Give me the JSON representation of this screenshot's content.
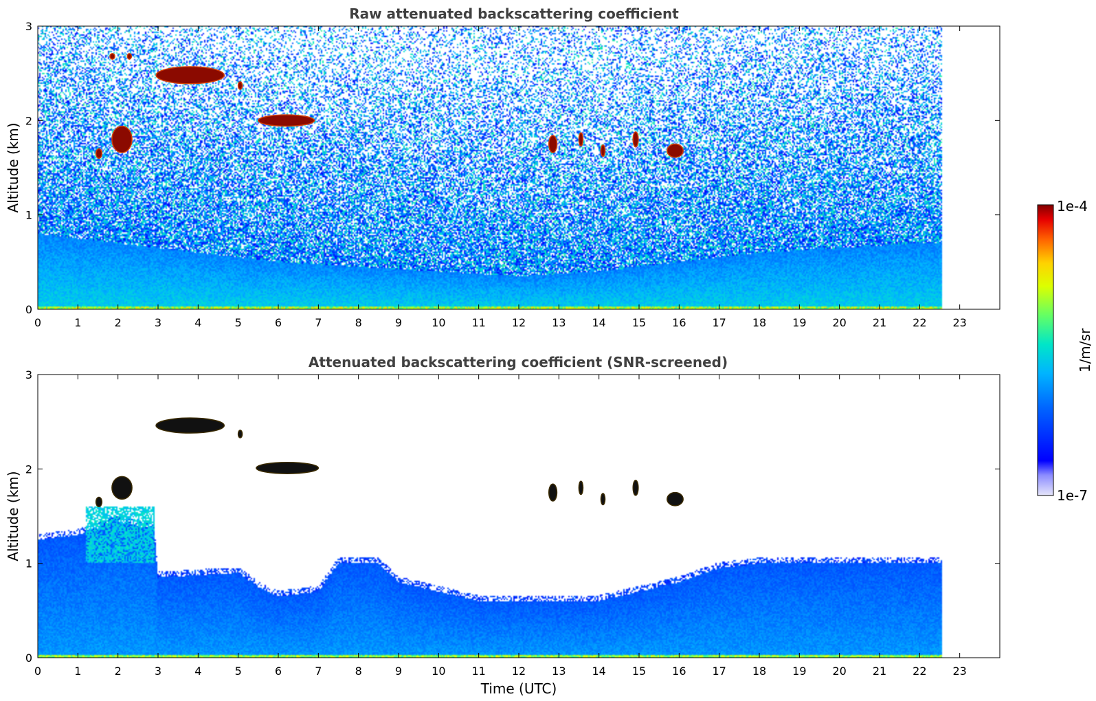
{
  "chart_data": [
    {
      "type": "heatmap",
      "title": "Raw attenuated backscattering coefficient",
      "xlabel": "",
      "ylabel": "Altitude (km)",
      "x_range": [
        0,
        24
      ],
      "y_range": [
        0,
        3
      ],
      "x_ticks": [
        "0",
        "1",
        "2",
        "3",
        "4",
        "5",
        "6",
        "7",
        "8",
        "9",
        "10",
        "11",
        "12",
        "13",
        "14",
        "15",
        "16",
        "17",
        "18",
        "19",
        "20",
        "21",
        "22",
        "23"
      ],
      "y_ticks": [
        "0",
        "1",
        "2",
        "3"
      ],
      "data_end_time": 22.55,
      "noise": "high",
      "boundary_layer_top_km": [
        [
          0,
          0.8
        ],
        [
          2,
          0.7
        ],
        [
          4,
          0.6
        ],
        [
          6,
          0.5
        ],
        [
          8,
          0.45
        ],
        [
          10,
          0.4
        ],
        [
          12,
          0.35
        ],
        [
          14,
          0.4
        ],
        [
          16,
          0.5
        ],
        [
          18,
          0.6
        ],
        [
          20,
          0.65
        ],
        [
          22,
          0.7
        ]
      ],
      "cloud_features": [
        {
          "t0": 2.95,
          "t1": 4.65,
          "alt": 2.48,
          "thick": 0.18
        },
        {
          "t0": 5.5,
          "t1": 6.9,
          "alt": 2.0,
          "thick": 0.12
        },
        {
          "t0": 1.85,
          "t1": 2.35,
          "alt": 1.8,
          "thick": 0.28
        },
        {
          "t0": 1.45,
          "t1": 1.6,
          "alt": 1.65,
          "thick": 0.1
        },
        {
          "t0": 1.8,
          "t1": 1.92,
          "alt": 2.68,
          "thick": 0.06
        },
        {
          "t0": 2.25,
          "t1": 2.32,
          "alt": 2.68,
          "thick": 0.06
        },
        {
          "t0": 5.0,
          "t1": 5.1,
          "alt": 2.37,
          "thick": 0.08
        },
        {
          "t0": 12.75,
          "t1": 12.95,
          "alt": 1.75,
          "thick": 0.18
        },
        {
          "t0": 13.5,
          "t1": 13.6,
          "alt": 1.8,
          "thick": 0.14
        },
        {
          "t0": 14.05,
          "t1": 14.15,
          "alt": 1.68,
          "thick": 0.12
        },
        {
          "t0": 14.85,
          "t1": 14.98,
          "alt": 1.8,
          "thick": 0.16
        },
        {
          "t0": 15.7,
          "t1": 16.1,
          "alt": 1.68,
          "thick": 0.14
        }
      ]
    },
    {
      "type": "heatmap",
      "title": "Attenuated backscattering coefficient (SNR-screened)",
      "xlabel": "Time (UTC)",
      "ylabel": "Altitude (km)",
      "x_range": [
        0,
        24
      ],
      "y_range": [
        0,
        3
      ],
      "x_ticks": [
        "0",
        "1",
        "2",
        "3",
        "4",
        "5",
        "6",
        "7",
        "8",
        "9",
        "10",
        "11",
        "12",
        "13",
        "14",
        "15",
        "16",
        "17",
        "18",
        "19",
        "20",
        "21",
        "22",
        "23"
      ],
      "y_ticks": [
        "0",
        "1",
        "2",
        "3"
      ],
      "data_end_time": 22.55,
      "noise": "screened",
      "screen_top_km": [
        [
          0,
          1.25
        ],
        [
          1,
          1.3
        ],
        [
          2,
          1.45
        ],
        [
          2.9,
          1.35
        ],
        [
          3,
          0.85
        ],
        [
          5,
          0.9
        ],
        [
          5.5,
          0.75
        ],
        [
          6,
          0.65
        ],
        [
          7,
          0.7
        ],
        [
          7.5,
          1.0
        ],
        [
          8.5,
          1.0
        ],
        [
          9,
          0.8
        ],
        [
          10,
          0.7
        ],
        [
          11,
          0.6
        ],
        [
          12,
          0.6
        ],
        [
          13,
          0.6
        ],
        [
          14,
          0.6
        ],
        [
          15,
          0.7
        ],
        [
          16,
          0.8
        ],
        [
          17,
          0.95
        ],
        [
          18,
          1.0
        ],
        [
          20,
          1.0
        ],
        [
          22,
          1.0
        ],
        [
          22.55,
          1.0
        ]
      ],
      "cloud_features": [
        {
          "t0": 2.95,
          "t1": 4.65,
          "alt": 2.46,
          "thick": 0.16
        },
        {
          "t0": 5.45,
          "t1": 7.0,
          "alt": 2.01,
          "thick": 0.12
        },
        {
          "t0": 1.85,
          "t1": 2.35,
          "alt": 1.8,
          "thick": 0.24
        },
        {
          "t0": 1.45,
          "t1": 1.6,
          "alt": 1.65,
          "thick": 0.1
        },
        {
          "t0": 5.0,
          "t1": 5.1,
          "alt": 2.37,
          "thick": 0.08
        },
        {
          "t0": 12.75,
          "t1": 12.95,
          "alt": 1.75,
          "thick": 0.18
        },
        {
          "t0": 13.5,
          "t1": 13.6,
          "alt": 1.8,
          "thick": 0.14
        },
        {
          "t0": 14.05,
          "t1": 14.15,
          "alt": 1.68,
          "thick": 0.12
        },
        {
          "t0": 14.85,
          "t1": 14.98,
          "alt": 1.8,
          "thick": 0.16
        },
        {
          "t0": 15.7,
          "t1": 16.1,
          "alt": 1.68,
          "thick": 0.14
        }
      ]
    }
  ],
  "colorbar": {
    "label": "1/m/sr",
    "max_label": "1e-4",
    "min_label": "1e-7",
    "colormap": "jet"
  }
}
